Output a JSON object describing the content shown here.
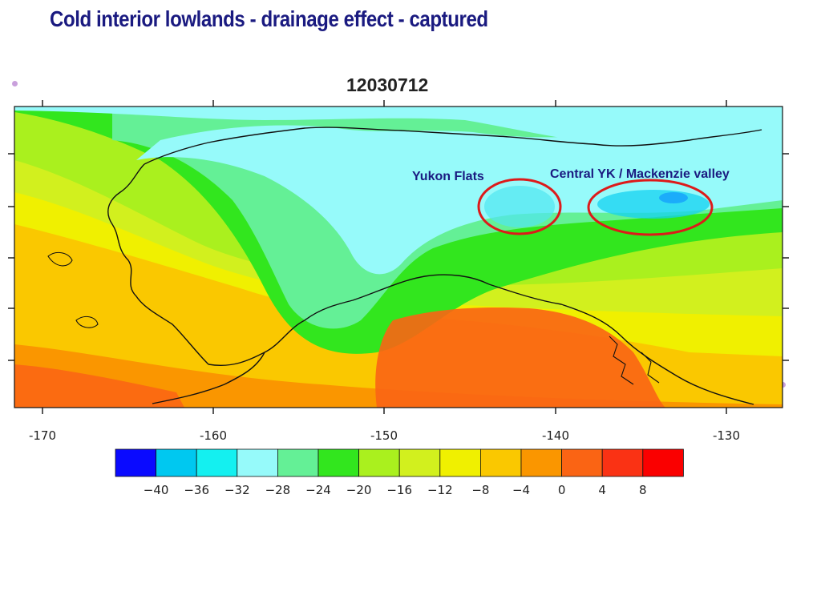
{
  "slide": {
    "title": "Cold interior lowlands - drainage effect - captured"
  },
  "map": {
    "title": "12030712",
    "longitude_ticks": [
      "-170",
      "-160",
      "-150",
      "-140",
      "-130"
    ],
    "annotations": [
      {
        "label": "Yukon Flats"
      },
      {
        "label": "Central YK / Mackenzie valley"
      }
    ],
    "highlight_color": "#dd1a1a"
  },
  "colorbar": {
    "colors": [
      "#0a0aff",
      "#00c8f0",
      "#14f0f0",
      "#96fafa",
      "#64f096",
      "#32e61e",
      "#aaf01e",
      "#d2f01e",
      "#f0f000",
      "#fac800",
      "#fa9600",
      "#fa6414",
      "#fa3214",
      "#fa0000"
    ],
    "labels": [
      "-40",
      "-36",
      "-32",
      "-28",
      "-24",
      "-20",
      "-16",
      "-12",
      "-8",
      "-4",
      "0",
      "4",
      "8"
    ]
  }
}
